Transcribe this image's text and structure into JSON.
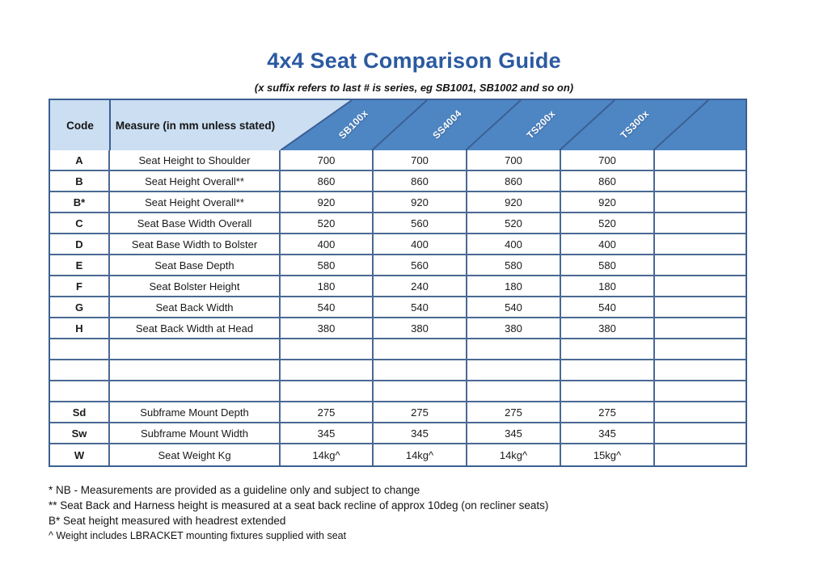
{
  "title": "4x4 Seat Comparison Guide",
  "subtitle": "(x suffix refers to last # is series, eg SB1001, SB1002 and so on)",
  "colors": {
    "title_blue": "#2b5aa0",
    "header_fill_blue": "#4e86c4",
    "header_fill_light": "#cbdef2",
    "grid_border": "#4a6993",
    "header_label_text": "#ffffff"
  },
  "table": {
    "code_header": "Code",
    "measure_header": "Measure (in mm unless stated)",
    "columns": [
      "SB100x",
      "SS4004",
      "TS200x",
      "TS300x"
    ],
    "has_trailing_blank_column": true,
    "rows": [
      {
        "code": "A",
        "measure": "Seat Height to Shoulder",
        "values": [
          "700",
          "700",
          "700",
          "700"
        ]
      },
      {
        "code": "B",
        "measure": "Seat Height Overall**",
        "values": [
          "860",
          "860",
          "860",
          "860"
        ]
      },
      {
        "code": "B*",
        "measure": "Seat Height Overall**",
        "values": [
          "920",
          "920",
          "920",
          "920"
        ]
      },
      {
        "code": "C",
        "measure": "Seat Base Width Overall",
        "values": [
          "520",
          "560",
          "520",
          "520"
        ]
      },
      {
        "code": "D",
        "measure": "Seat Base Width to Bolster",
        "values": [
          "400",
          "400",
          "400",
          "400"
        ]
      },
      {
        "code": "E",
        "measure": "Seat Base Depth",
        "values": [
          "580",
          "560",
          "580",
          "580"
        ]
      },
      {
        "code": "F",
        "measure": "Seat Bolster Height",
        "values": [
          "180",
          "240",
          "180",
          "180"
        ]
      },
      {
        "code": "G",
        "measure": "Seat Back Width",
        "values": [
          "540",
          "540",
          "540",
          "540"
        ]
      },
      {
        "code": "H",
        "measure": "Seat Back Width at Head",
        "values": [
          "380",
          "380",
          "380",
          "380"
        ]
      },
      {
        "code": "",
        "measure": "",
        "values": [
          "",
          "",
          "",
          ""
        ]
      },
      {
        "code": "",
        "measure": "",
        "values": [
          "",
          "",
          "",
          ""
        ]
      },
      {
        "code": "",
        "measure": "",
        "values": [
          "",
          "",
          "",
          ""
        ]
      },
      {
        "code": "Sd",
        "measure": "Subframe Mount Depth",
        "values": [
          "275",
          "275",
          "275",
          "275"
        ]
      },
      {
        "code": "Sw",
        "measure": "Subframe Mount Width",
        "values": [
          "345",
          "345",
          "345",
          "345"
        ]
      },
      {
        "code": "W",
        "measure": "Seat Weight Kg",
        "values": [
          "14kg^",
          "14kg^",
          "14kg^",
          "15kg^"
        ]
      }
    ]
  },
  "notes": [
    "* NB - Measurements are provided as a guideline only and subject to change",
    "** Seat Back and Harness height is measured at a seat back recline of approx 10deg (on recliner seats)",
    "B* Seat height measured with headrest extended",
    "^ Weight includes LBRACKET mounting fixtures supplied with seat"
  ]
}
